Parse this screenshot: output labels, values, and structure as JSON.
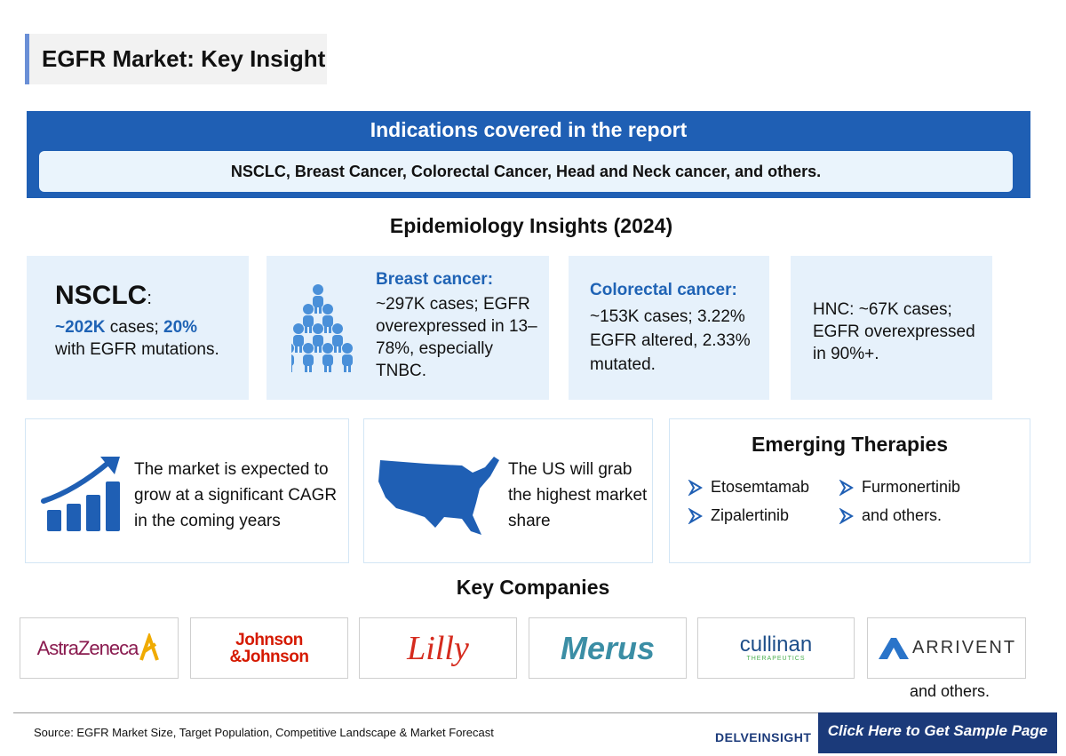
{
  "header": {
    "title": "EGFR Market: Key Insight"
  },
  "indications": {
    "title": "Indications covered in the report",
    "text": "NSCLC, Breast Cancer, Colorectal Cancer, Head and Neck cancer, and others."
  },
  "epidemiology": {
    "title": "Epidemiology Insights (2024)",
    "nsclc": {
      "title": "NSCLC",
      "colon": ":",
      "cases": "~202K",
      "cases_text": " cases; ",
      "share": "20%",
      "share_text": "with EGFR mutations."
    },
    "breast": {
      "title": "Breast cancer:",
      "text": "~297K cases; EGFR overexpressed in 13–78%, especially TNBC."
    },
    "colorectal": {
      "title": "Colorectal cancer:",
      "text": "~153K cases; 3.22% EGFR altered, 2.33% mutated."
    },
    "hnc": {
      "text": "HNC: ~67K cases; EGFR overexpressed in 90%+."
    }
  },
  "market": {
    "text": "The market is expected to grow at a significant CAGR in the coming years"
  },
  "region": {
    "text": "The US will grab the highest market share"
  },
  "therapies": {
    "title": "Emerging Therapies",
    "items": [
      "Etosemtamab",
      "Furmonertinib",
      "Zipalertinib",
      "and others."
    ]
  },
  "companies": {
    "title": "Key Companies",
    "logos": [
      "AstraZeneca",
      "Johnson",
      "&Johnson",
      "Lilly",
      "Merus",
      "cullinan",
      "THERAPEUTICS",
      "ARRIVENT"
    ],
    "more": "and others."
  },
  "footer": {
    "source": "Source: EGFR Market Size, Target Population, Competitive Landscape & Market Forecast",
    "brand": "DELVEINSIGHT",
    "cta": "Click Here to Get Sample Page"
  }
}
